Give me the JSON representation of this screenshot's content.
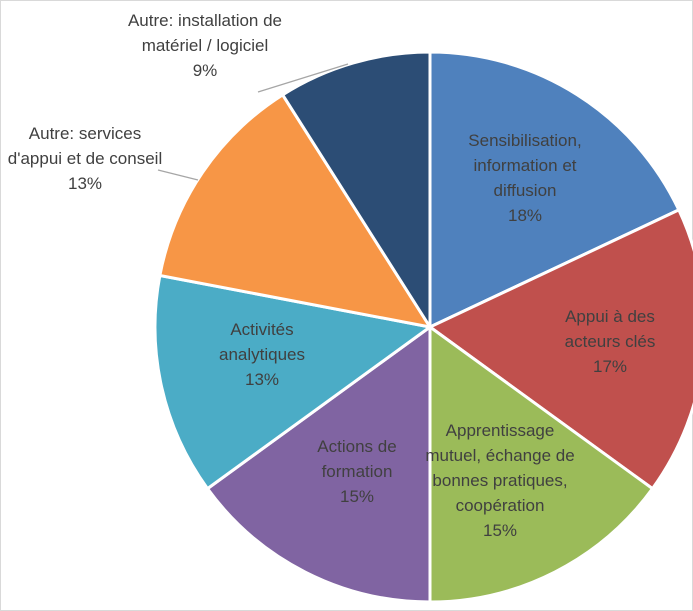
{
  "chart_data": {
    "type": "pie",
    "categories": [
      "Sensibilisation, information et diffusion",
      "Appui à des acteurs clés",
      "Apprentissage mutuel, échange de bonnes pratiques, coopération",
      "Actions de formation",
      "Activités analytiques",
      "Autre: services d'appui et de conseil",
      "Autre: installation de matériel / logiciel"
    ],
    "values": [
      18,
      17,
      15,
      15,
      13,
      13,
      9
    ],
    "value_labels": [
      "18%",
      "17%",
      "15%",
      "15%",
      "13%",
      "13%",
      "9%"
    ],
    "colors": [
      "#4f81bd",
      "#c0504d",
      "#9bbb59",
      "#8064a2",
      "#4bacc6",
      "#f79646",
      "#2c4d75"
    ]
  }
}
